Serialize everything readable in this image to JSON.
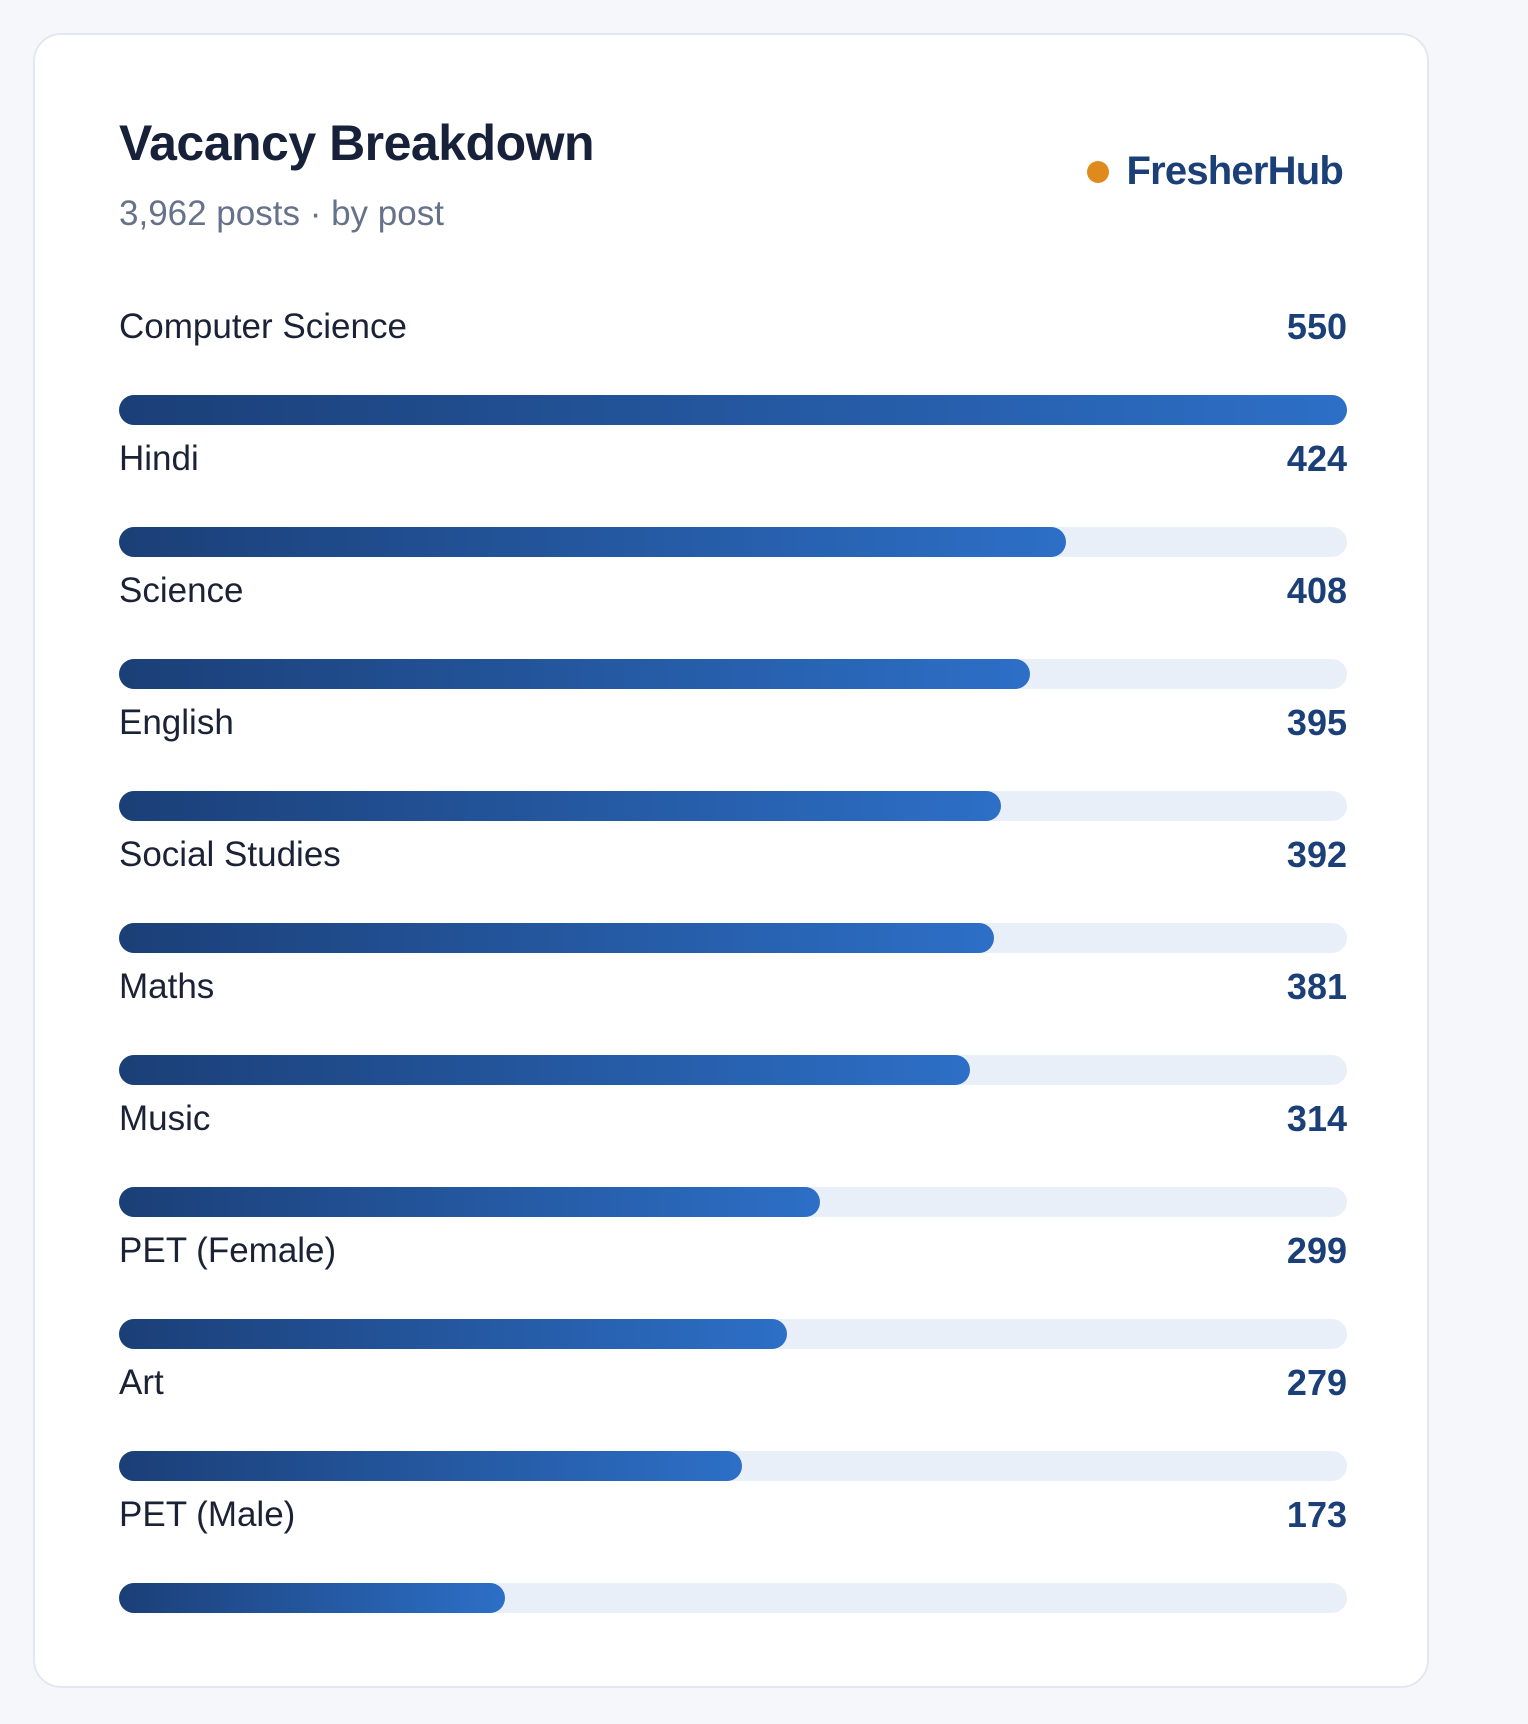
{
  "card": {
    "title": "Vacancy Breakdown",
    "subtitle": "3,962 posts · by post",
    "brand": {
      "name": "FresherHub",
      "dot_color": "#e08a1e"
    }
  },
  "colors": {
    "bar_start": "#1b3f77",
    "bar_end": "#2d6fc7",
    "track": "#e9eff9"
  },
  "chart_data": {
    "type": "bar",
    "orientation": "horizontal",
    "title": "Vacancy Breakdown",
    "subtitle": "3,962 posts · by post",
    "categories": [
      "Computer Science",
      "Hindi",
      "Science",
      "English",
      "Social Studies",
      "Maths",
      "Music",
      "PET (Female)",
      "Art",
      "PET (Male)"
    ],
    "values": [
      550,
      424,
      408,
      395,
      392,
      381,
      314,
      299,
      279,
      173
    ],
    "xlim": [
      0,
      550
    ],
    "grid": false,
    "legend": "none"
  }
}
